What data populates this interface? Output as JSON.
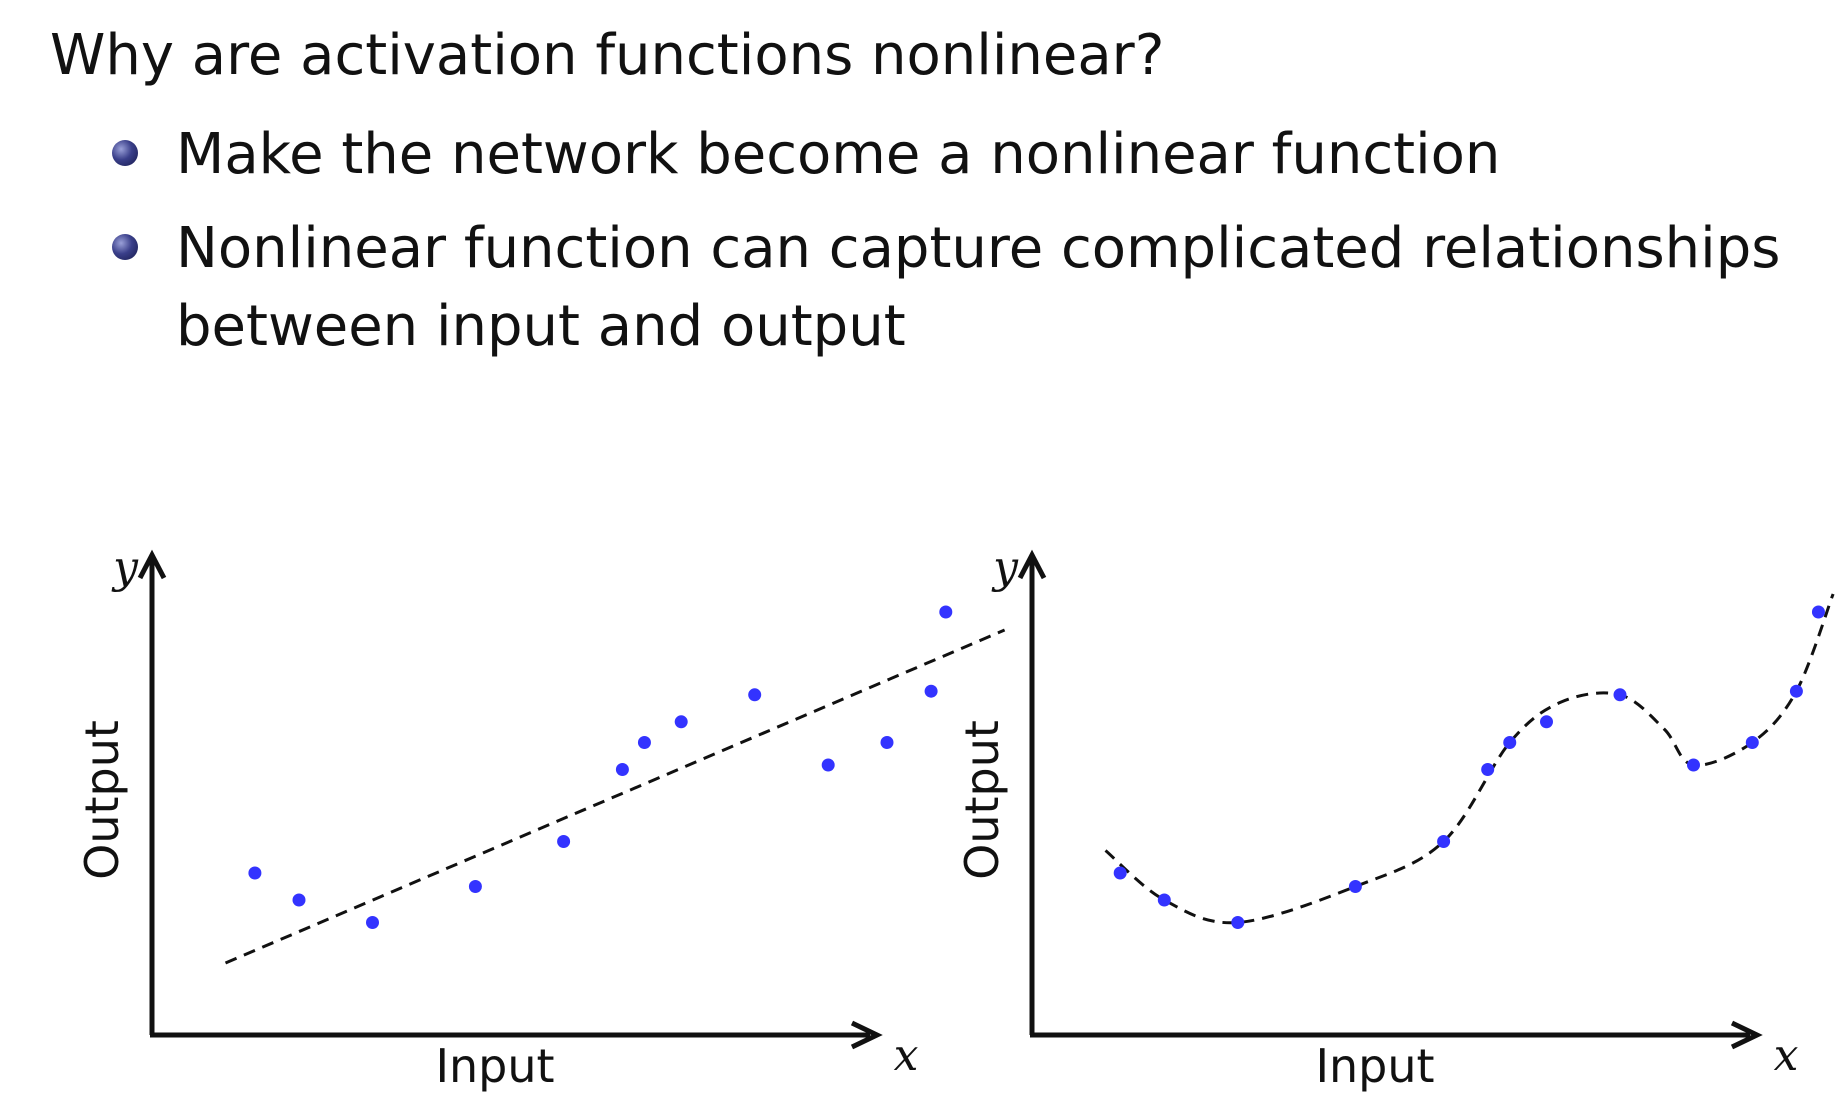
{
  "slide": {
    "title": "Why are activation functions nonlinear?",
    "bullets": [
      "Make the network become a nonlinear function",
      "Nonlinear function can capture complicated relationships",
      "between input and output"
    ]
  },
  "colors": {
    "points": "#3333ff",
    "lines": "#111111"
  },
  "chart_data": [
    {
      "type": "scatter",
      "xlabel": "Input",
      "ylabel": "Output",
      "x_var": "x",
      "y_var": "y",
      "points": [
        {
          "x": 0.7,
          "y": 1.8
        },
        {
          "x": 1.0,
          "y": 1.5
        },
        {
          "x": 1.5,
          "y": 1.25
        },
        {
          "x": 2.2,
          "y": 1.65
        },
        {
          "x": 2.8,
          "y": 2.15
        },
        {
          "x": 3.2,
          "y": 2.95
        },
        {
          "x": 3.35,
          "y": 3.25
        },
        {
          "x": 3.6,
          "y": 3.48
        },
        {
          "x": 4.1,
          "y": 3.78
        },
        {
          "x": 4.6,
          "y": 3.0
        },
        {
          "x": 5.0,
          "y": 3.25
        },
        {
          "x": 5.3,
          "y": 3.82
        },
        {
          "x": 5.4,
          "y": 4.7
        }
      ],
      "fit": {
        "style": "dashed",
        "points": [
          {
            "x": 0.5,
            "y": 0.8
          },
          {
            "x": 5.8,
            "y": 4.5
          }
        ]
      }
    },
    {
      "type": "scatter",
      "xlabel": "Input",
      "ylabel": "Output",
      "x_var": "x",
      "y_var": "y",
      "points": [
        {
          "x": 0.6,
          "y": 1.8
        },
        {
          "x": 0.9,
          "y": 1.5
        },
        {
          "x": 1.4,
          "y": 1.25
        },
        {
          "x": 2.2,
          "y": 1.65
        },
        {
          "x": 2.8,
          "y": 2.15
        },
        {
          "x": 3.1,
          "y": 2.95
        },
        {
          "x": 3.25,
          "y": 3.25
        },
        {
          "x": 3.5,
          "y": 3.48
        },
        {
          "x": 4.0,
          "y": 3.78
        },
        {
          "x": 4.5,
          "y": 3.0
        },
        {
          "x": 4.9,
          "y": 3.25
        },
        {
          "x": 5.2,
          "y": 3.82
        },
        {
          "x": 5.35,
          "y": 4.7
        }
      ],
      "fit": {
        "style": "dashed",
        "points": [
          {
            "x": 0.5,
            "y": 2.05
          },
          {
            "x": 0.9,
            "y": 1.5
          },
          {
            "x": 1.4,
            "y": 1.25
          },
          {
            "x": 2.2,
            "y": 1.65
          },
          {
            "x": 2.8,
            "y": 2.15
          },
          {
            "x": 3.25,
            "y": 3.25
          },
          {
            "x": 3.6,
            "y": 3.7
          },
          {
            "x": 4.0,
            "y": 3.78
          },
          {
            "x": 4.3,
            "y": 3.4
          },
          {
            "x": 4.5,
            "y": 3.0
          },
          {
            "x": 4.9,
            "y": 3.25
          },
          {
            "x": 5.2,
            "y": 3.82
          },
          {
            "x": 5.45,
            "y": 4.9
          }
        ]
      }
    }
  ]
}
